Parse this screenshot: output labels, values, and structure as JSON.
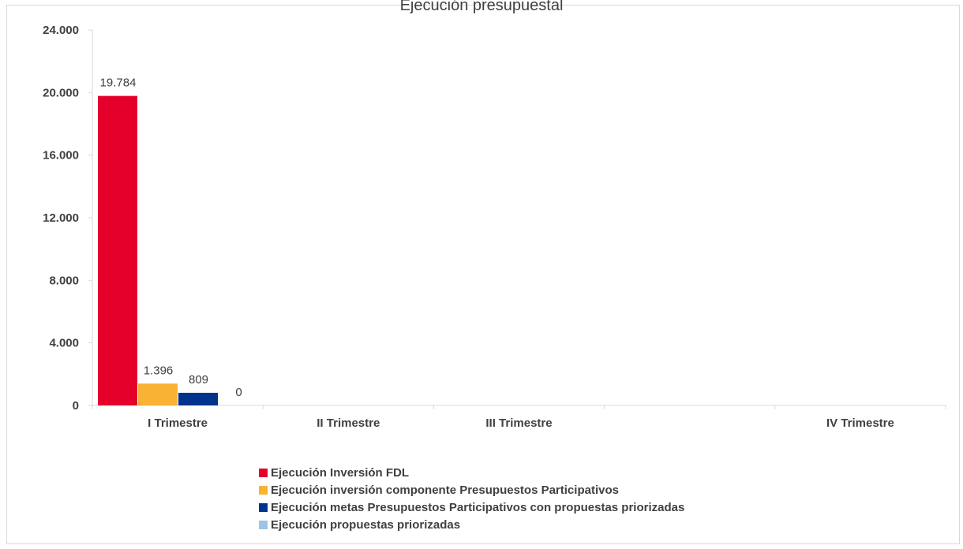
{
  "chart_data": {
    "type": "bar",
    "title": "Ejecución presupuestal",
    "categories": [
      "I Trimestre",
      "II Trimestre",
      "III Trimestre",
      "",
      "IV Trimestre"
    ],
    "series": [
      {
        "name": "Ejecución Inversión FDL",
        "color": "#e4002b",
        "values": [
          19784,
          null,
          null,
          null,
          null
        ],
        "labels": [
          "19.784"
        ]
      },
      {
        "name": "Ejecución inversión componente Presupuestos Participativos",
        "color": "#f9b233",
        "values": [
          1396,
          null,
          null,
          null,
          null
        ],
        "labels": [
          "1.396"
        ]
      },
      {
        "name": "Ejecución metas Presupuestos Participativos con propuestas priorizadas",
        "color": "#00338d",
        "values": [
          809,
          null,
          null,
          null,
          null
        ],
        "labels": [
          "809"
        ]
      },
      {
        "name": "Ejecución propuestas priorizadas",
        "color": "#9dc3e6",
        "values": [
          0,
          null,
          null,
          null,
          null
        ],
        "labels": [
          "0"
        ]
      }
    ],
    "ylim": [
      0,
      24000
    ],
    "yticks": [
      0,
      4000,
      8000,
      12000,
      16000,
      20000,
      24000
    ],
    "ytick_labels": [
      "0",
      "4.000",
      "8.000",
      "12.000",
      "16.000",
      "20.000",
      "24.000"
    ],
    "xlabel": "",
    "ylabel": "",
    "grid": false,
    "legend_position": "bottom"
  }
}
